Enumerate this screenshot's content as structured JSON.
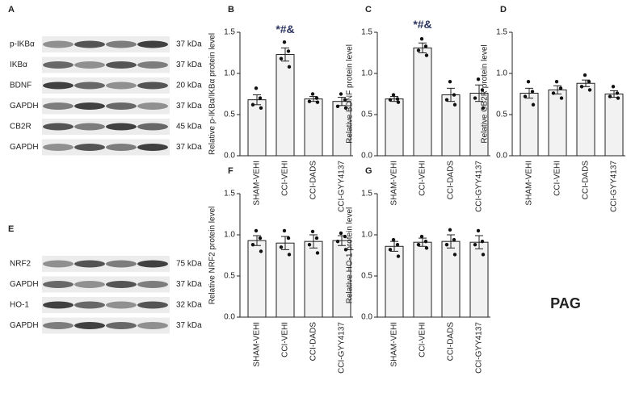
{
  "chart_data": [
    {
      "type": "bar",
      "panel": "B",
      "ylabel": "Relative p-IKBα/IKBα protein level",
      "categories": [
        "SHAM-VEHI",
        "CCI-VEHI",
        "CCI-DADS",
        "CCI-GYY4137"
      ],
      "values": [
        0.68,
        1.23,
        0.69,
        0.66
      ],
      "errors": [
        0.06,
        0.08,
        0.03,
        0.05
      ],
      "points": [
        [
          0.82,
          0.7,
          0.62,
          0.58
        ],
        [
          1.38,
          1.27,
          1.18,
          1.08
        ],
        [
          0.75,
          0.7,
          0.66,
          0.65
        ],
        [
          0.75,
          0.68,
          0.6,
          0.58
        ]
      ],
      "annotations": [
        null,
        "*#&",
        null,
        null
      ],
      "color": "#f2f2f2",
      "ylim": [
        0,
        1.5
      ],
      "yticks": [
        {
          "value": 0,
          "label": "0.0"
        },
        {
          "value": 0.5,
          "label": "0.5"
        },
        {
          "value": 1,
          "label": "1.0"
        },
        {
          "value": 1.5,
          "label": "1.5"
        }
      ]
    },
    {
      "type": "bar",
      "panel": "C",
      "ylabel": "Relative BDNF protein level",
      "categories": [
        "SHAM-VEHI",
        "CCI-VEHI",
        "CCI-DADS",
        "CCI-GYY4137"
      ],
      "values": [
        0.69,
        1.31,
        0.74,
        0.76
      ],
      "errors": [
        0.03,
        0.06,
        0.08,
        0.1
      ],
      "points": [
        [
          0.74,
          0.69,
          0.68,
          0.65
        ],
        [
          1.42,
          1.33,
          1.28,
          1.22
        ],
        [
          0.9,
          0.74,
          0.68,
          0.62
        ],
        [
          0.93,
          0.8,
          0.7,
          0.58
        ]
      ],
      "annotations": [
        null,
        "*#&",
        null,
        null
      ],
      "color": "#f2f2f2",
      "ylim": [
        0,
        1.5
      ],
      "yticks": [
        {
          "value": 0,
          "label": "0.0"
        },
        {
          "value": 0.5,
          "label": "0.5"
        },
        {
          "value": 1,
          "label": "1.0"
        },
        {
          "value": 1.5,
          "label": "1.5"
        }
      ]
    },
    {
      "type": "bar",
      "panel": "D",
      "ylabel": "Relative CB2R protein level",
      "categories": [
        "SHAM-VEHI",
        "CCI-VEHI",
        "CCI-DADS",
        "CCI-GYY4137"
      ],
      "values": [
        0.76,
        0.8,
        0.88,
        0.75
      ],
      "errors": [
        0.06,
        0.05,
        0.04,
        0.04
      ],
      "points": [
        [
          0.9,
          0.78,
          0.72,
          0.62
        ],
        [
          0.9,
          0.82,
          0.76,
          0.7
        ],
        [
          0.98,
          0.9,
          0.84,
          0.8
        ],
        [
          0.84,
          0.76,
          0.72,
          0.7
        ]
      ],
      "color": "#f2f2f2",
      "ylim": [
        0,
        1.5
      ],
      "yticks": [
        {
          "value": 0,
          "label": "0.0"
        },
        {
          "value": 0.5,
          "label": "0.5"
        },
        {
          "value": 1,
          "label": "1.0"
        },
        {
          "value": 1.5,
          "label": "1.5"
        }
      ]
    },
    {
      "type": "bar",
      "panel": "F",
      "ylabel": "Relative NRF2 protein level",
      "categories": [
        "SHAM-VEHI",
        "CCI-VEHI",
        "CCI-DADS",
        "CCI-GYY4137"
      ],
      "values": [
        0.93,
        0.9,
        0.92,
        0.93
      ],
      "errors": [
        0.06,
        0.08,
        0.08,
        0.06
      ],
      "points": [
        [
          1.05,
          0.96,
          0.88,
          0.8
        ],
        [
          1.05,
          0.96,
          0.85,
          0.76
        ],
        [
          1.04,
          0.96,
          0.88,
          0.78
        ],
        [
          1.02,
          0.98,
          0.92,
          0.82
        ]
      ],
      "color": "#f2f2f2",
      "ylim": [
        0,
        1.5
      ],
      "yticks": [
        {
          "value": 0,
          "label": "0.0"
        },
        {
          "value": 0.5,
          "label": "0.5"
        },
        {
          "value": 1,
          "label": "1.0"
        },
        {
          "value": 1.5,
          "label": "1.5"
        }
      ]
    },
    {
      "type": "bar",
      "panel": "G",
      "ylabel": "Relative HO-1 protein level",
      "categories": [
        "SHAM-VEHI",
        "CCI-VEHI",
        "CCI-DADS",
        "CCI-GYY4137"
      ],
      "values": [
        0.86,
        0.91,
        0.92,
        0.91
      ],
      "errors": [
        0.06,
        0.05,
        0.08,
        0.08
      ],
      "points": [
        [
          0.94,
          0.88,
          0.82,
          0.74
        ],
        [
          0.98,
          0.92,
          0.88,
          0.84
        ],
        [
          1.06,
          0.94,
          0.88,
          0.76
        ],
        [
          1.05,
          0.92,
          0.88,
          0.76
        ]
      ],
      "color": "#f2f2f2",
      "ylim": [
        0,
        1.5
      ],
      "yticks": [
        {
          "value": 0,
          "label": "0.0"
        },
        {
          "value": 0.5,
          "label": "0.5"
        },
        {
          "value": 1,
          "label": "1.0"
        },
        {
          "value": 1.5,
          "label": "1.5"
        }
      ]
    }
  ],
  "blots": [
    {
      "panel": "A",
      "rows": [
        {
          "label": "p-IKBα",
          "size": "37 kDa"
        },
        {
          "label": "IKBα",
          "size": "37 kDa"
        },
        {
          "label": "BDNF",
          "size": "20 kDa"
        },
        {
          "label": "GAPDH",
          "size": "37 kDa"
        },
        {
          "label": "CB2R",
          "size": "45 kDa"
        },
        {
          "label": "GAPDH",
          "size": "37 kDa"
        }
      ]
    },
    {
      "panel": "E",
      "rows": [
        {
          "label": "NRF2",
          "size": "75 kDa"
        },
        {
          "label": "GAPDH",
          "size": "37 kDa"
        },
        {
          "label": "HO-1",
          "size": "32 kDa"
        },
        {
          "label": "GAPDH",
          "size": "37 kDa"
        }
      ]
    }
  ],
  "region": "PAG"
}
